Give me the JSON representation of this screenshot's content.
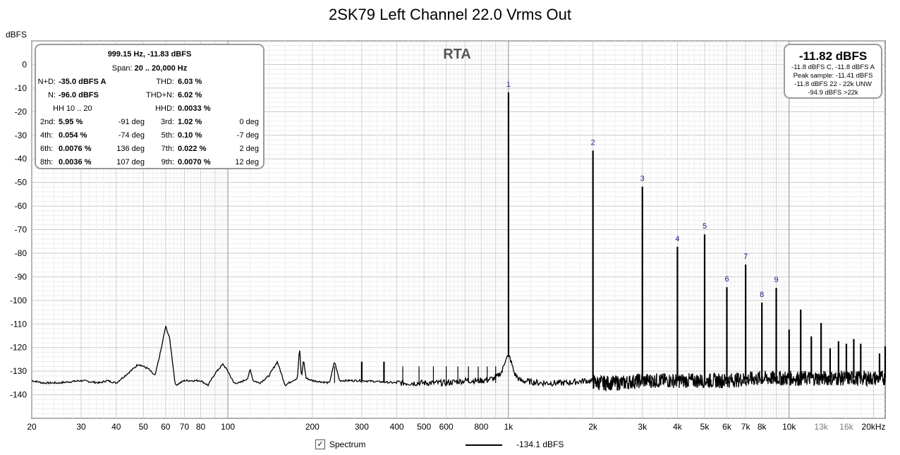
{
  "title": "2SK79 Left Channel 22.0 Vrms Out",
  "y_unit": "dBFS",
  "watermark": "RTA",
  "stats_box": {
    "header": "999.15 Hz, -11.83 dBFS",
    "span_label": "Span:",
    "span_value": "20 .. 20,000 Hz",
    "rows": [
      [
        {
          "l": "N+D:",
          "v": "-35.0 dBFS A"
        },
        {
          "l": "THD:",
          "v": "6.03 %"
        }
      ],
      [
        {
          "l": "N:",
          "v": "-96.0 dBFS"
        },
        {
          "l": "THD+N:",
          "v": "6.02 %"
        }
      ],
      [
        {
          "l": "HH 10 .. 20",
          "v": ""
        },
        {
          "l": "HHD:",
          "v": "0.0033 %"
        }
      ]
    ],
    "harmonics": [
      {
        "l1": "2nd:",
        "v1": "5.95 %",
        "p1": "-91 deg",
        "l2": "3rd:",
        "v2": "1.02 %",
        "p2": "0 deg"
      },
      {
        "l1": "4th:",
        "v1": "0.054 %",
        "p1": "-74 deg",
        "l2": "5th:",
        "v2": "0.10 %",
        "p2": "-7 deg"
      },
      {
        "l1": "6th:",
        "v1": "0.0076 %",
        "p1": "136 deg",
        "l2": "7th:",
        "v2": "0.022 %",
        "p2": "2 deg"
      },
      {
        "l1": "8th:",
        "v1": "0.0036 %",
        "p1": "107 deg",
        "l2": "9th:",
        "v2": "0.0070 %",
        "p2": "12 deg"
      }
    ]
  },
  "level_box": {
    "big": "-11.82 dBFS",
    "lines": [
      "-11.8 dBFS C, -11.8 dBFS A",
      "Peak sample: -11.41 dBFS",
      "-11.8 dBFS 22 - 22k UNW",
      "-94.9 dBFS >22k"
    ]
  },
  "legend": {
    "checkbox_mark": "✓",
    "series_label": "Spectrum",
    "value": "-134.1 dBFS"
  },
  "chart_data": {
    "type": "line",
    "title": "2SK79 Left Channel 22.0 Vrms Out",
    "xlabel": "",
    "ylabel": "dBFS",
    "x_scale": "log",
    "xlim": [
      20,
      22000
    ],
    "ylim": [
      -150,
      10
    ],
    "grid": true,
    "x_ticks": [
      {
        "v": 20,
        "t": "20"
      },
      {
        "v": 30,
        "t": "30"
      },
      {
        "v": 40,
        "t": "40"
      },
      {
        "v": 50,
        "t": "50"
      },
      {
        "v": 60,
        "t": "60"
      },
      {
        "v": 70,
        "t": "70"
      },
      {
        "v": 80,
        "t": "80"
      },
      {
        "v": 100,
        "t": "100"
      },
      {
        "v": 200,
        "t": "200"
      },
      {
        "v": 300,
        "t": "300"
      },
      {
        "v": 400,
        "t": "400"
      },
      {
        "v": 500,
        "t": "500"
      },
      {
        "v": 600,
        "t": "600"
      },
      {
        "v": 800,
        "t": "800"
      },
      {
        "v": 1000,
        "t": "1k"
      },
      {
        "v": 2000,
        "t": "2k"
      },
      {
        "v": 3000,
        "t": "3k"
      },
      {
        "v": 4000,
        "t": "4k"
      },
      {
        "v": 5000,
        "t": "5k"
      },
      {
        "v": 6000,
        "t": "6k"
      },
      {
        "v": 7000,
        "t": "7k"
      },
      {
        "v": 8000,
        "t": "8k"
      },
      {
        "v": 10000,
        "t": "10k"
      },
      {
        "v": 13000,
        "t": "13k",
        "faint": true
      },
      {
        "v": 16000,
        "t": "16k",
        "faint": true
      },
      {
        "v": 20000,
        "t": "20kHz"
      }
    ],
    "y_ticks": [
      0,
      -10,
      -20,
      -30,
      -40,
      -50,
      -60,
      -70,
      -80,
      -90,
      -100,
      -110,
      -120,
      -130,
      -140
    ],
    "harmonic_markers": [
      {
        "label": "1",
        "f": 1000,
        "db": -11.8
      },
      {
        "label": "2",
        "f": 2000,
        "db": -36.5
      },
      {
        "label": "3",
        "f": 3000,
        "db": -51.8
      },
      {
        "label": "4",
        "f": 4000,
        "db": -77.3
      },
      {
        "label": "5",
        "f": 5000,
        "db": -72.0
      },
      {
        "label": "6",
        "f": 6000,
        "db": -94.4
      },
      {
        "label": "7",
        "f": 7000,
        "db": -84.8
      },
      {
        "label": "8",
        "f": 8000,
        "db": -100.9
      },
      {
        "label": "9",
        "f": 9000,
        "db": -94.7
      }
    ],
    "series": [
      {
        "name": "Spectrum",
        "noise_floor": [
          [
            20,
            -134
          ],
          [
            22,
            -135
          ],
          [
            25,
            -135
          ],
          [
            30,
            -134
          ],
          [
            35,
            -135
          ],
          [
            37,
            -134
          ],
          [
            40,
            -135
          ],
          [
            45,
            -130
          ],
          [
            48,
            -127
          ],
          [
            52,
            -129
          ],
          [
            55,
            -132
          ],
          [
            58,
            -120
          ],
          [
            60,
            -111
          ],
          [
            62,
            -116
          ],
          [
            65,
            -136
          ],
          [
            70,
            -134
          ],
          [
            80,
            -134
          ],
          [
            85,
            -136
          ],
          [
            90,
            -131
          ],
          [
            96,
            -127
          ],
          [
            100,
            -130
          ],
          [
            105,
            -135
          ],
          [
            110,
            -135
          ],
          [
            118,
            -133
          ],
          [
            120,
            -129
          ],
          [
            123,
            -134
          ],
          [
            130,
            -135
          ],
          [
            140,
            -132
          ],
          [
            150,
            -126
          ],
          [
            155,
            -131
          ],
          [
            160,
            -136
          ],
          [
            170,
            -134
          ],
          [
            177,
            -133
          ],
          [
            180,
            -120
          ],
          [
            183,
            -133
          ],
          [
            186,
            -125
          ],
          [
            190,
            -133
          ],
          [
            200,
            -134
          ],
          [
            230,
            -135
          ],
          [
            240,
            -126
          ],
          [
            250,
            -134
          ],
          [
            300,
            -134
          ],
          [
            400,
            -135
          ],
          [
            500,
            -135
          ],
          [
            600,
            -135
          ],
          [
            700,
            -134
          ],
          [
            800,
            -134
          ],
          [
            900,
            -133
          ],
          [
            950,
            -130
          ],
          [
            980,
            -124
          ],
          [
            1010,
            -124
          ],
          [
            1050,
            -131
          ],
          [
            1100,
            -134
          ],
          [
            1300,
            -135
          ],
          [
            1600,
            -135
          ],
          [
            1900,
            -134
          ],
          [
            2100,
            -135
          ],
          [
            2500,
            -135
          ],
          [
            3000,
            -134
          ],
          [
            4000,
            -134
          ],
          [
            6000,
            -134
          ],
          [
            8000,
            -133
          ],
          [
            10000,
            -133
          ],
          [
            13000,
            -133
          ],
          [
            16000,
            -133
          ],
          [
            20000,
            -133
          ],
          [
            22000,
            -133
          ]
        ],
        "spikes": [
          {
            "f": 1000,
            "db": -11.8
          },
          {
            "f": 2000,
            "db": -36.5
          },
          {
            "f": 3000,
            "db": -51.8
          },
          {
            "f": 4000,
            "db": -77.3
          },
          {
            "f": 5000,
            "db": -72.0
          },
          {
            "f": 6000,
            "db": -94.4
          },
          {
            "f": 7000,
            "db": -84.8
          },
          {
            "f": 8000,
            "db": -100.9
          },
          {
            "f": 9000,
            "db": -94.7
          },
          {
            "f": 10000,
            "db": -112.4
          },
          {
            "f": 11000,
            "db": -103.9
          },
          {
            "f": 12000,
            "db": -115.3
          },
          {
            "f": 13000,
            "db": -109.6
          },
          {
            "f": 14000,
            "db": -120.3
          },
          {
            "f": 15000,
            "db": -117.3
          },
          {
            "f": 16000,
            "db": -118.4
          },
          {
            "f": 17000,
            "db": -116.4
          },
          {
            "f": 18000,
            "db": -118.4
          },
          {
            "f": 21000,
            "db": -122.5
          },
          {
            "f": 22000,
            "db": -119.5
          },
          {
            "f": 180,
            "db": -120
          },
          {
            "f": 240,
            "db": -126
          },
          {
            "f": 300,
            "db": -126
          },
          {
            "f": 360,
            "db": -126
          }
        ]
      }
    ]
  }
}
